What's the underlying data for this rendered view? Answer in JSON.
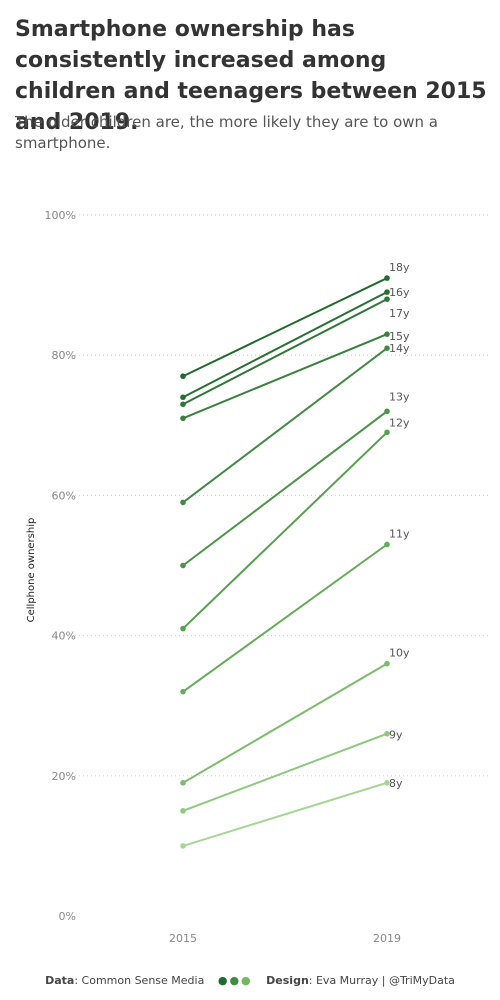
{
  "title": "Smartphone ownership has consistently increased among children and teenagers between 2015 and 2019.",
  "subtitle": "The older children are, the more likely they are to own a smartphone.",
  "footer": {
    "data_label": "Data",
    "data_value": "Common Sense Media",
    "design_label": "Design",
    "design_value": "Eva Murray | @TriMyData",
    "dot_colors": [
      "#1e6b2e",
      "#3e8e41",
      "#6fb85f"
    ]
  },
  "chart_data": {
    "type": "line",
    "title": "",
    "xlabel": "",
    "ylabel": "Cellphone ownership",
    "x": [
      "2015",
      "2019"
    ],
    "ylim": [
      0,
      100
    ],
    "yticks": [
      0,
      20,
      40,
      60,
      80,
      100
    ],
    "ytick_labels": [
      "0%",
      "20%",
      "40%",
      "60%",
      "80%",
      "100%"
    ],
    "grid": "horizontal-dotted",
    "series": [
      {
        "name": "18y",
        "values": [
          77,
          91
        ],
        "color": "#1f6a2d"
      },
      {
        "name": "16y",
        "values": [
          74,
          89
        ],
        "color": "#276f33"
      },
      {
        "name": "17y",
        "values": [
          73,
          88
        ],
        "color": "#2f7638"
      },
      {
        "name": "15y",
        "values": [
          71,
          83
        ],
        "color": "#3a803e"
      },
      {
        "name": "14y",
        "values": [
          59,
          81
        ],
        "color": "#428944"
      },
      {
        "name": "13y",
        "values": [
          50,
          72
        ],
        "color": "#4d944a"
      },
      {
        "name": "12y",
        "values": [
          41,
          69
        ],
        "color": "#58a050"
      },
      {
        "name": "11y",
        "values": [
          32,
          53
        ],
        "color": "#66ab5a"
      },
      {
        "name": "10y",
        "values": [
          19,
          36
        ],
        "color": "#7dbb6d"
      },
      {
        "name": "9y",
        "values": [
          15,
          26
        ],
        "color": "#91c881"
      },
      {
        "name": "8y",
        "values": [
          10,
          19
        ],
        "color": "#a6d595"
      }
    ]
  }
}
